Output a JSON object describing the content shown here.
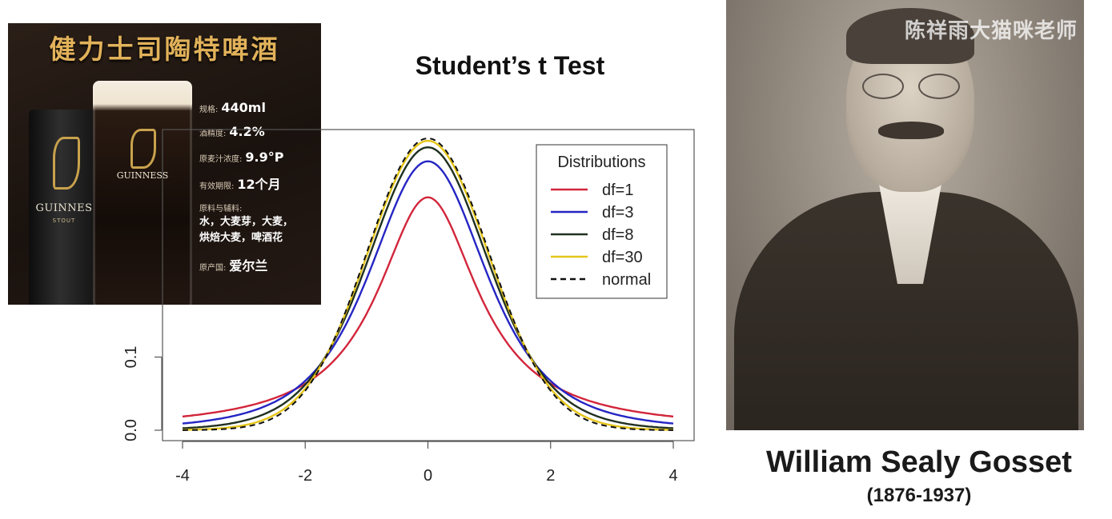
{
  "ad": {
    "title": "健力士司陶特啤酒",
    "can_brand": "GUINNES",
    "can_sub": "STOUT",
    "glass_brand": "GUINNESS",
    "specs": [
      {
        "key": "规格:",
        "value": "440ml"
      },
      {
        "key": "酒精度:",
        "value": "4.2%"
      },
      {
        "key": "原麦汁浓度:",
        "value": "9.9°P"
      },
      {
        "key": "有效期限:",
        "value": "12个月"
      }
    ],
    "ingredients_label": "原料与辅料:",
    "ingredients_line1": "水，大麦芽，大麦，",
    "ingredients_line2": "烘焙大麦，啤酒花",
    "origin_key": "原产国:",
    "origin_value": "爱尔兰"
  },
  "chart_data": {
    "type": "line",
    "title": "Student’s t Test",
    "xlabel": "",
    "ylabel": "",
    "xlim": [
      -4,
      4
    ],
    "ylim": [
      0,
      0.4
    ],
    "x_ticks": [
      -4,
      -2,
      0,
      2,
      4
    ],
    "x_tick_labels": [
      "-4",
      "-2",
      "0",
      "2",
      "4"
    ],
    "y_ticks": [
      0.0,
      0.1
    ],
    "y_tick_labels": [
      "0.0",
      "0.1"
    ],
    "legend": {
      "title": "Distributions",
      "placement": "top-right",
      "entries": [
        "df=1",
        "df=3",
        "df=8",
        "df=30",
        "normal"
      ]
    },
    "series": [
      {
        "name": "df=1",
        "df": 1,
        "color": "#d2263b",
        "dash": false
      },
      {
        "name": "df=3",
        "df": 3,
        "color": "#2525c4",
        "dash": false
      },
      {
        "name": "df=8",
        "df": 8,
        "color": "#203020",
        "dash": false
      },
      {
        "name": "df=30",
        "df": 30,
        "color": "#e6c619",
        "dash": false
      },
      {
        "name": "normal",
        "df": null,
        "color": "#111111",
        "dash": true
      }
    ]
  },
  "photo": {
    "watermark": "陈祥雨大猫咪老师",
    "caption_name": "William Sealy Gosset",
    "caption_years": "(1876-1937)"
  }
}
